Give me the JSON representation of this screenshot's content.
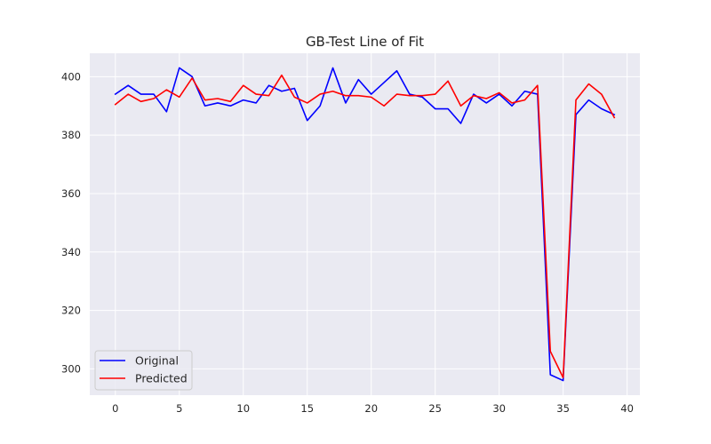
{
  "chart_data": {
    "type": "line",
    "title": "GB-Test Line of Fit",
    "xlabel": "",
    "ylabel": "",
    "xlim": [
      -2,
      41
    ],
    "ylim": [
      291,
      408
    ],
    "xticks": [
      0,
      5,
      10,
      15,
      20,
      25,
      30,
      35,
      40
    ],
    "yticks": [
      300,
      320,
      340,
      360,
      380,
      400
    ],
    "grid": true,
    "legend_position": "lower-left",
    "background_color": "#eaeaf2",
    "x": [
      0,
      1,
      2,
      3,
      4,
      5,
      6,
      7,
      8,
      9,
      10,
      11,
      12,
      13,
      14,
      15,
      16,
      17,
      18,
      19,
      20,
      21,
      22,
      23,
      24,
      25,
      26,
      27,
      28,
      29,
      30,
      31,
      32,
      33,
      34,
      35,
      36,
      37,
      38,
      39
    ],
    "series": [
      {
        "name": "Original",
        "color": "#0000ff",
        "values": [
          394,
          397,
          394,
          394,
          388,
          403,
          400,
          390,
          391,
          390,
          392,
          391,
          397,
          395,
          396,
          385,
          390,
          403,
          391,
          399,
          394,
          398,
          402,
          394,
          393,
          389,
          389,
          384,
          394,
          391,
          394,
          390,
          395,
          394,
          298,
          296,
          387,
          392,
          389,
          387
        ]
      },
      {
        "name": "Predicted",
        "color": "#ff0000",
        "values": [
          390.5,
          394,
          391.5,
          392.5,
          395.5,
          393,
          399.5,
          392,
          392.5,
          391.5,
          397,
          394,
          393.5,
          400.5,
          393,
          391,
          394,
          395,
          393.5,
          393.5,
          393,
          390,
          394,
          393.5,
          393.5,
          394,
          398.5,
          390,
          393.5,
          392.5,
          394.5,
          391,
          392,
          397,
          306,
          297,
          392,
          397.5,
          394,
          386
        ]
      }
    ]
  }
}
